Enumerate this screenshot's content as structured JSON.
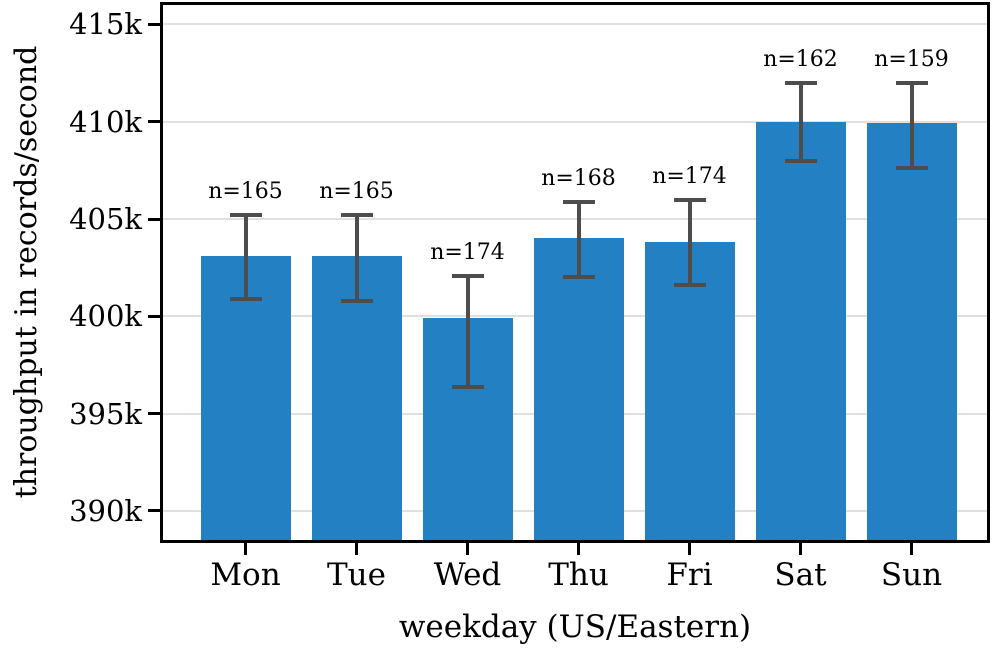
{
  "chart_data": {
    "type": "bar",
    "title": "",
    "xlabel": "weekday (US/Eastern)",
    "ylabel": "throughput in records/second",
    "categories": [
      "Mon",
      "Tue",
      "Wed",
      "Thu",
      "Fri",
      "Sat",
      "Sun"
    ],
    "values": [
      403100,
      403100,
      399900,
      404000,
      403800,
      410000,
      409950
    ],
    "error_low": [
      400900,
      400800,
      396350,
      402000,
      401600,
      408000,
      407600
    ],
    "error_high": [
      405200,
      405200,
      402050,
      405850,
      406000,
      412000,
      412000
    ],
    "annotations": [
      "n=165",
      "n=165",
      "n=174",
      "n=168",
      "n=174",
      "n=162",
      "n=159"
    ],
    "yticks": [
      390000,
      395000,
      400000,
      405000,
      410000,
      415000
    ],
    "ytick_labels": [
      "390k",
      "395k",
      "400k",
      "405k",
      "410k",
      "415k"
    ],
    "ylim": [
      388500,
      416000
    ],
    "grid": "horizontal",
    "legend": "none",
    "bar_color": "#2381c3",
    "error_color": "#4d4d4d",
    "grid_color": "#e0e0e0",
    "axis_color": "#000000",
    "background_color": "#ffffff"
  }
}
